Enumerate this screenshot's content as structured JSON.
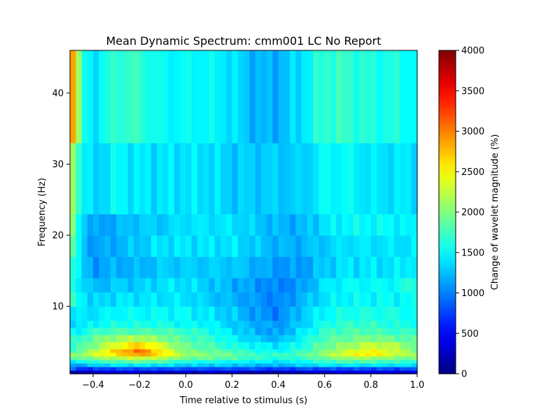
{
  "chart_data": {
    "type": "heatmap",
    "title": "Mean Dynamic Spectrum: cmm001 LC No Report",
    "xlabel": "Time relative to stimulus (s)",
    "ylabel": "Frequency (Hz)",
    "xlim": [
      -0.5,
      1.0
    ],
    "ylim": [
      0.5,
      46
    ],
    "xticks": [
      -0.4,
      -0.2,
      0.0,
      0.2,
      0.4,
      0.6,
      0.8,
      1.0
    ],
    "xtick_labels": [
      "−0.4",
      "−0.2",
      "0.0",
      "0.2",
      "0.4",
      "0.6",
      "0.8",
      "1.0"
    ],
    "yticks": [
      10,
      20,
      30,
      40
    ],
    "ytick_labels": [
      "10",
      "20",
      "30",
      "40"
    ],
    "colormap": "jet",
    "colorbar": {
      "label": "Change of wavelet magnitude (%)",
      "min": 0,
      "max": 4000,
      "ticks": [
        0,
        500,
        1000,
        1500,
        2000,
        2500,
        3000,
        3500,
        4000
      ],
      "tick_labels": [
        "0",
        "500",
        "1000",
        "1500",
        "2000",
        "2500",
        "3000",
        "3500",
        "4000"
      ]
    },
    "frequency_bands_hz": [
      [
        0.5,
        1.0
      ],
      [
        1.0,
        1.5
      ],
      [
        1.5,
        2.0
      ],
      [
        2.0,
        2.5
      ],
      [
        2.5,
        3.0
      ],
      [
        3.0,
        3.5
      ],
      [
        3.5,
        4.0
      ],
      [
        4.0,
        5.0
      ],
      [
        5.0,
        6.0
      ],
      [
        6.0,
        7.0
      ],
      [
        7.0,
        8.0
      ],
      [
        8.0,
        10.0
      ],
      [
        10.0,
        12.0
      ],
      [
        12.0,
        14.0
      ],
      [
        14.0,
        17.0
      ],
      [
        17.0,
        20.0
      ],
      [
        20.0,
        23.0
      ],
      [
        23.0,
        33.0
      ],
      [
        33.0,
        46.0
      ]
    ],
    "time_breakpoints_s": [
      -0.5,
      -0.45,
      -0.4,
      -0.3,
      -0.2,
      -0.1,
      0.0,
      0.1,
      0.2,
      0.3,
      0.4,
      0.5,
      0.6,
      0.7,
      0.8,
      0.9,
      1.0
    ],
    "keyframes": [
      [
        200,
        150,
        300,
        350,
        350,
        300,
        300,
        300,
        300,
        200,
        200,
        300,
        350,
        400,
        400,
        350,
        350
      ],
      [
        900,
        700,
        700,
        800,
        800,
        800,
        800,
        800,
        800,
        800,
        700,
        800,
        800,
        800,
        800,
        800,
        800
      ],
      [
        1200,
        1100,
        1300,
        1400,
        1400,
        1400,
        1300,
        1300,
        1300,
        1200,
        1200,
        1300,
        1400,
        1400,
        1400,
        1400,
        1400
      ],
      [
        1500,
        1500,
        1700,
        1800,
        1900,
        1800,
        1600,
        1600,
        1500,
        1500,
        1400,
        1500,
        1700,
        1800,
        1800,
        1700,
        1700
      ],
      [
        1800,
        1900,
        2000,
        2200,
        2300,
        2200,
        1900,
        1900,
        1800,
        1700,
        1600,
        1700,
        1900,
        2100,
        2100,
        2000,
        1900
      ],
      [
        2000,
        2100,
        2300,
        2600,
        2900,
        2600,
        2100,
        2000,
        1900,
        1700,
        1700,
        1800,
        2100,
        2400,
        2600,
        2300,
        2100
      ],
      [
        1800,
        1900,
        2200,
        2700,
        3100,
        2500,
        2000,
        1900,
        1800,
        1600,
        1500,
        1700,
        2000,
        2300,
        2500,
        2300,
        2000
      ],
      [
        1700,
        1800,
        2000,
        2400,
        2700,
        2300,
        1900,
        1800,
        1600,
        1500,
        1400,
        1600,
        1900,
        2100,
        2300,
        2200,
        1900
      ],
      [
        1600,
        1700,
        1900,
        2100,
        2200,
        2000,
        1800,
        1700,
        1500,
        1300,
        1200,
        1500,
        1800,
        1900,
        2000,
        1900,
        1800
      ],
      [
        1500,
        1500,
        1700,
        1800,
        1800,
        1800,
        1700,
        1600,
        1400,
        1200,
        1100,
        1400,
        1700,
        1800,
        1800,
        1700,
        1700
      ],
      [
        1400,
        1400,
        1500,
        1600,
        1600,
        1600,
        1500,
        1500,
        1300,
        1200,
        1100,
        1300,
        1600,
        1700,
        1700,
        1600,
        1600
      ],
      [
        1400,
        1400,
        1400,
        1500,
        1500,
        1500,
        1500,
        1400,
        1300,
        1100,
        1000,
        1300,
        1500,
        1600,
        1600,
        1600,
        1500
      ],
      [
        1700,
        1500,
        1300,
        1400,
        1400,
        1400,
        1400,
        1300,
        1200,
        1100,
        1000,
        1200,
        1400,
        1500,
        1500,
        1500,
        1500
      ],
      [
        1700,
        1400,
        1200,
        1300,
        1300,
        1400,
        1400,
        1300,
        1200,
        1100,
        1000,
        1100,
        1400,
        1500,
        1500,
        1500,
        1700
      ],
      [
        1900,
        1300,
        1100,
        1200,
        1200,
        1300,
        1300,
        1300,
        1300,
        1200,
        1100,
        1100,
        1300,
        1400,
        1400,
        1400,
        1500
      ],
      [
        2000,
        1300,
        1100,
        1200,
        1300,
        1400,
        1400,
        1400,
        1400,
        1300,
        1200,
        1200,
        1300,
        1400,
        1400,
        1400,
        1400
      ],
      [
        2100,
        1400,
        1100,
        1200,
        1300,
        1300,
        1400,
        1400,
        1400,
        1300,
        1200,
        1200,
        1400,
        1500,
        1500,
        1500,
        1400
      ],
      [
        2400,
        1500,
        1300,
        1500,
        1400,
        1400,
        1400,
        1400,
        1300,
        1300,
        1300,
        1300,
        1500,
        1500,
        1400,
        1400,
        1400
      ],
      [
        3400,
        1600,
        1400,
        1700,
        1700,
        1500,
        1500,
        1500,
        1400,
        1200,
        1200,
        1400,
        1700,
        1700,
        1600,
        1600,
        1500
      ]
    ]
  }
}
